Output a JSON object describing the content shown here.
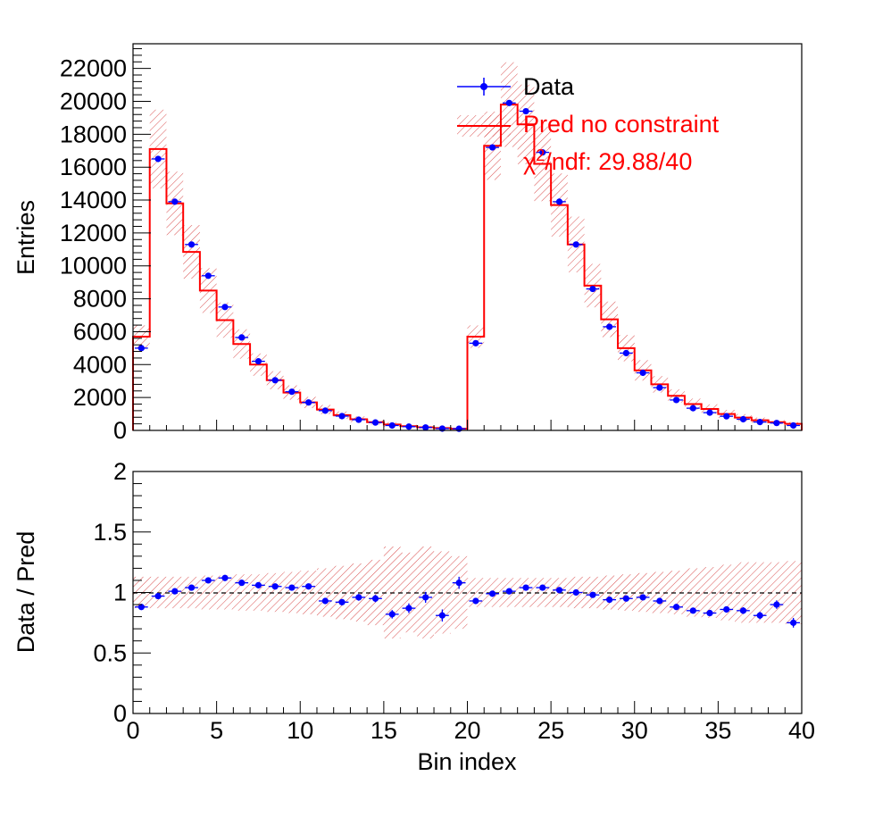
{
  "chart_data": [
    {
      "type": "histogram-with-errors",
      "panel": "main",
      "ylabel": "Entries",
      "xlim": [
        0,
        40
      ],
      "ylim": [
        0,
        23500
      ],
      "yticks": [
        0,
        2000,
        4000,
        6000,
        8000,
        10000,
        12000,
        14000,
        16000,
        18000,
        20000,
        22000
      ],
      "ytick_labels": [
        "0",
        "2000",
        "4000",
        "6000",
        "8000",
        "10000",
        "12000",
        "14000",
        "16000",
        "18000",
        "20000",
        "22000"
      ],
      "legend": {
        "position": "top-right",
        "entries": [
          {
            "label": "Data",
            "color": "#0000ff"
          },
          {
            "label": "Pred no constraint",
            "color": "#ff0000"
          }
        ],
        "chi2_label": "χ²/ndf: 29.88/40",
        "chi2_prefix": "χ",
        "chi2_sup": "2",
        "chi2_suffix": "/ndf: 29.88/40"
      },
      "series": [
        {
          "name": "Pred no constraint",
          "style": "step",
          "color": "#ff0000",
          "bin_edges": [
            0,
            40
          ],
          "values": [
            5700,
            17100,
            13800,
            10850,
            8500,
            6700,
            5250,
            4000,
            3050,
            2300,
            1700,
            1270,
            930,
            680,
            500,
            360,
            260,
            190,
            140,
            100,
            5700,
            17300,
            19800,
            18600,
            16200,
            13700,
            11300,
            8800,
            6750,
            5000,
            3650,
            2800,
            2100,
            1600,
            1300,
            1000,
            780,
            620,
            500,
            400
          ],
          "rel_uncertainty": [
            0.12,
            0.14,
            0.14,
            0.15,
            0.16,
            0.16,
            0.17,
            0.17,
            0.18,
            0.19,
            0.2,
            0.22,
            0.24,
            0.26,
            0.29,
            0.38,
            0.3,
            0.38,
            0.34,
            0.3,
            0.12,
            0.12,
            0.13,
            0.13,
            0.14,
            0.14,
            0.15,
            0.15,
            0.16,
            0.16,
            0.17,
            0.18,
            0.19,
            0.21,
            0.22,
            0.25,
            0.27,
            0.26,
            0.24,
            0.26
          ]
        },
        {
          "name": "Data",
          "style": "points",
          "color": "#0000ff",
          "values": [
            5000,
            16500,
            13900,
            11300,
            9400,
            7500,
            5650,
            4200,
            3050,
            2350,
            1700,
            1200,
            870,
            650,
            480,
            300,
            230,
            180,
            110,
            100,
            5300,
            17200,
            19900,
            19400,
            16900,
            13900,
            11300,
            8600,
            6300,
            4700,
            3500,
            2600,
            1850,
            1350,
            1080,
            860,
            680,
            510,
            450,
            300
          ]
        }
      ]
    },
    {
      "type": "ratio",
      "panel": "ratio",
      "xlabel": "Bin index",
      "ylabel": "Data / Pred",
      "xlim": [
        0,
        40
      ],
      "ylim": [
        0,
        2
      ],
      "xticks": [
        0,
        5,
        10,
        15,
        20,
        25,
        30,
        35,
        40
      ],
      "xtick_labels": [
        "0",
        "5",
        "10",
        "15",
        "20",
        "25",
        "30",
        "35",
        "40"
      ],
      "yticks": [
        0,
        0.5,
        1,
        1.5,
        2
      ],
      "ytick_labels": [
        "0",
        "0.5",
        "1",
        "1.5",
        "2"
      ],
      "reference_line": 1,
      "ratio": [
        0.88,
        0.97,
        1.01,
        1.04,
        1.1,
        1.12,
        1.08,
        1.06,
        1.05,
        1.04,
        1.05,
        0.93,
        0.92,
        0.96,
        0.95,
        0.82,
        0.87,
        0.96,
        0.81,
        1.08,
        0.93,
        0.99,
        1.01,
        1.04,
        1.04,
        1.02,
        1.0,
        0.98,
        0.94,
        0.95,
        0.96,
        0.93,
        0.88,
        0.85,
        0.83,
        0.86,
        0.85,
        0.81,
        0.9,
        0.75
      ],
      "ratio_err": [
        0.01,
        0.008,
        0.008,
        0.009,
        0.01,
        0.01,
        0.012,
        0.014,
        0.016,
        0.018,
        0.02,
        0.022,
        0.025,
        0.028,
        0.03,
        0.035,
        0.04,
        0.045,
        0.05,
        0.05,
        0.012,
        0.008,
        0.007,
        0.007,
        0.008,
        0.009,
        0.01,
        0.011,
        0.012,
        0.014,
        0.016,
        0.018,
        0.02,
        0.022,
        0.024,
        0.026,
        0.028,
        0.03,
        0.035,
        0.04
      ],
      "band_rel": [
        0.13,
        0.13,
        0.13,
        0.13,
        0.14,
        0.14,
        0.15,
        0.15,
        0.16,
        0.17,
        0.18,
        0.2,
        0.22,
        0.24,
        0.27,
        0.38,
        0.33,
        0.38,
        0.34,
        0.3,
        0.12,
        0.12,
        0.12,
        0.12,
        0.12,
        0.12,
        0.13,
        0.13,
        0.14,
        0.15,
        0.16,
        0.17,
        0.18,
        0.2,
        0.21,
        0.23,
        0.25,
        0.25,
        0.25,
        0.26
      ]
    }
  ]
}
